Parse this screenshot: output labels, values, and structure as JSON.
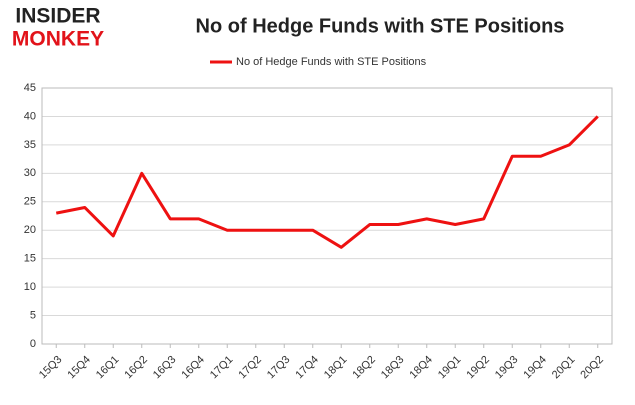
{
  "logo": {
    "top": "INSIDER",
    "bottom": "MONKEY"
  },
  "chart_data": {
    "type": "line",
    "title": "No of Hedge Funds with STE Positions",
    "categories": [
      "15Q3",
      "15Q4",
      "16Q1",
      "16Q2",
      "16Q3",
      "16Q4",
      "17Q1",
      "17Q2",
      "17Q3",
      "17Q4",
      "18Q1",
      "18Q2",
      "18Q3",
      "18Q4",
      "19Q1",
      "19Q2",
      "19Q3",
      "19Q4",
      "20Q1",
      "20Q2"
    ],
    "series": [
      {
        "name": "No of Hedge Funds with STE Positions",
        "color": "#ee1111",
        "values": [
          23,
          24,
          19,
          30,
          22,
          22,
          20,
          20,
          20,
          20,
          17,
          21,
          21,
          22,
          21,
          22,
          33,
          33,
          35,
          40
        ]
      }
    ],
    "ylim": [
      0,
      45
    ],
    "yticks": [
      0,
      5,
      10,
      15,
      20,
      25,
      30,
      35,
      40,
      45
    ],
    "grid": true,
    "legend": "top"
  }
}
